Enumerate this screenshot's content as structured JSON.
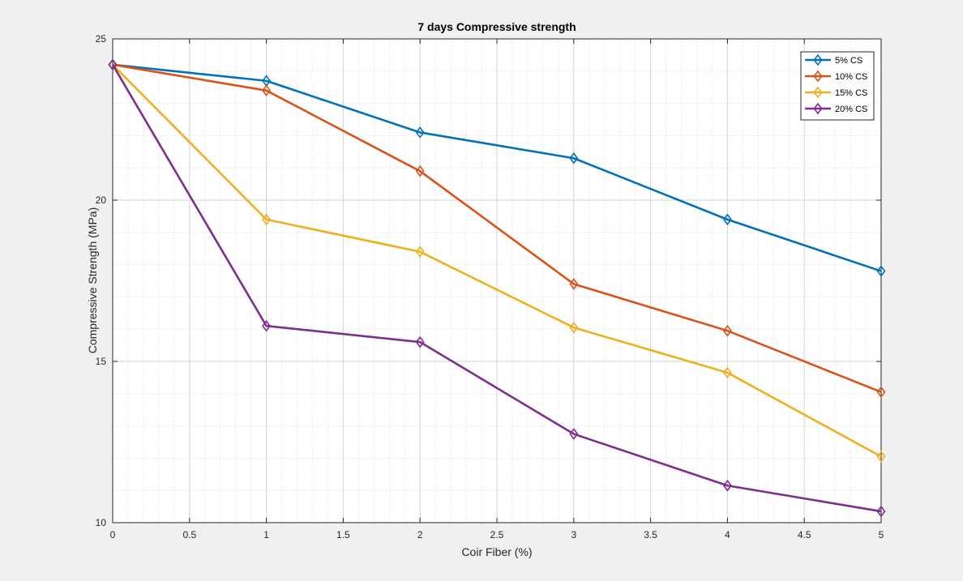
{
  "chart_data": {
    "type": "line",
    "title": "7 days Compressive strength",
    "xlabel": "Coir Fiber (%)",
    "ylabel": "Compressive Strength (MPa)",
    "xlim": [
      0,
      5
    ],
    "ylim": [
      10,
      25
    ],
    "xticks": [
      0,
      0.5,
      1,
      1.5,
      2,
      2.5,
      3,
      3.5,
      4,
      4.5,
      5
    ],
    "xtick_labels": [
      "0",
      "0.5",
      "1",
      "1.5",
      "2",
      "2.5",
      "3",
      "3.5",
      "4",
      "4.5",
      "5"
    ],
    "yticks": [
      10,
      15,
      20,
      25
    ],
    "ytick_labels": [
      "10",
      "15",
      "20",
      "25"
    ],
    "grid": true,
    "minor_grid": true,
    "legend_position": "top-right",
    "x": [
      0,
      1,
      2,
      3,
      4,
      5
    ],
    "series": [
      {
        "name": "5% CS",
        "color": "#0072BD",
        "marker": "diamond",
        "values": [
          24.2,
          23.7,
          22.1,
          21.3,
          19.4,
          17.8
        ]
      },
      {
        "name": "10% CS",
        "color": "#D95319",
        "marker": "diamond",
        "values": [
          24.2,
          23.4,
          20.9,
          17.4,
          15.95,
          14.05
        ]
      },
      {
        "name": "15% CS",
        "color": "#EDB120",
        "marker": "diamond",
        "values": [
          24.2,
          19.4,
          18.4,
          16.05,
          14.65,
          12.05
        ]
      },
      {
        "name": "20% CS",
        "color": "#7E2F8E",
        "marker": "diamond",
        "values": [
          24.2,
          16.1,
          15.6,
          12.75,
          11.15,
          10.35
        ]
      }
    ]
  }
}
